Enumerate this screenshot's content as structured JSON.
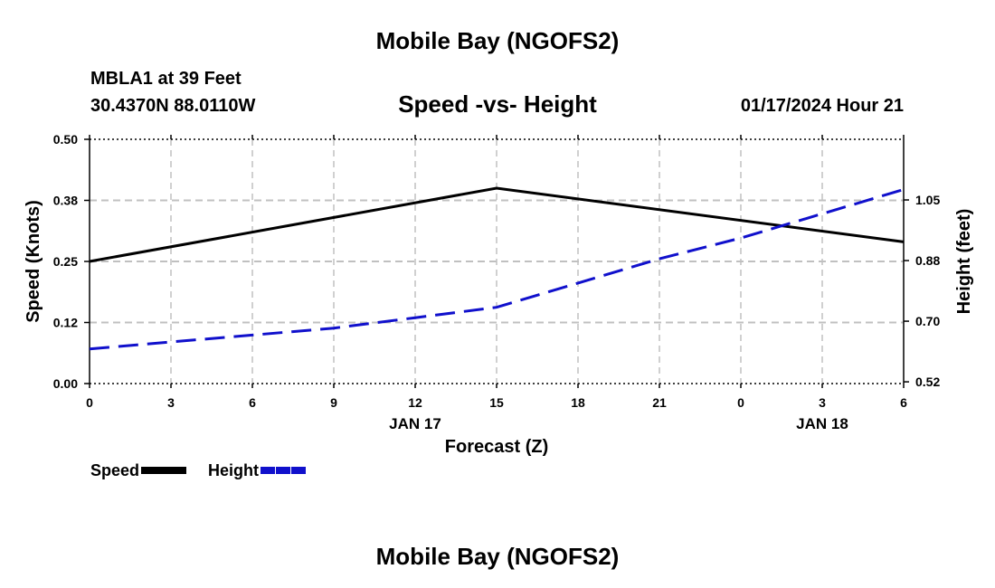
{
  "header": {
    "title": "Mobile Bay (NGOFS2)",
    "station": "MBLA1 at 39 Feet",
    "coordinates": "30.4370N  88.0110W",
    "chart_title": "Speed -vs- Height",
    "datetime": "01/17/2024 Hour 21"
  },
  "footer": {
    "title": "Mobile Bay (NGOFS2)"
  },
  "colors": {
    "speed": "#000000",
    "height": "#1010cc",
    "grid": "#c0c0c0"
  },
  "chart_data": {
    "type": "line",
    "title": "Speed -vs- Height",
    "xlabel": "Forecast (Z)",
    "ylabel": "Speed (Knots)",
    "y2label": "Height (feet)",
    "x": [
      0,
      3,
      6,
      9,
      12,
      15,
      18,
      21,
      24,
      27,
      30
    ],
    "xtick_labels": [
      "0",
      "3",
      "6",
      "9",
      "12",
      "15",
      "18",
      "21",
      "0",
      "3",
      "6"
    ],
    "date_labels": [
      {
        "x": 12,
        "label": "JAN 17"
      },
      {
        "x": 27,
        "label": "JAN 18"
      }
    ],
    "xlim": [
      0,
      30
    ],
    "ylim": [
      0,
      0.5
    ],
    "y2lim": [
      0.52,
      1.225
    ],
    "yticks": [
      0,
      0.125,
      0.25,
      0.375,
      0.5
    ],
    "ytick_labels": [
      "0.00",
      "0.12",
      "0.25",
      "0.38",
      "0.50"
    ],
    "y2ticks": [
      0.525,
      0.7,
      0.875,
      1.05
    ],
    "y2tick_labels": [
      "0.52",
      "0.70",
      "0.88",
      "1.05"
    ],
    "grid": true,
    "legend": "bottom-left",
    "series": [
      {
        "name": "Speed",
        "axis": "left",
        "style": "solid",
        "x": [
          0,
          15,
          30
        ],
        "values": [
          0.25,
          0.4,
          0.29
        ]
      },
      {
        "name": "Height",
        "axis": "right",
        "style": "dashed",
        "x": [
          0,
          3,
          6,
          9,
          12,
          15,
          18,
          21,
          24,
          27,
          30
        ],
        "values": [
          0.62,
          0.64,
          0.66,
          0.68,
          0.71,
          0.74,
          0.81,
          0.88,
          0.94,
          1.01,
          1.08
        ]
      }
    ]
  }
}
